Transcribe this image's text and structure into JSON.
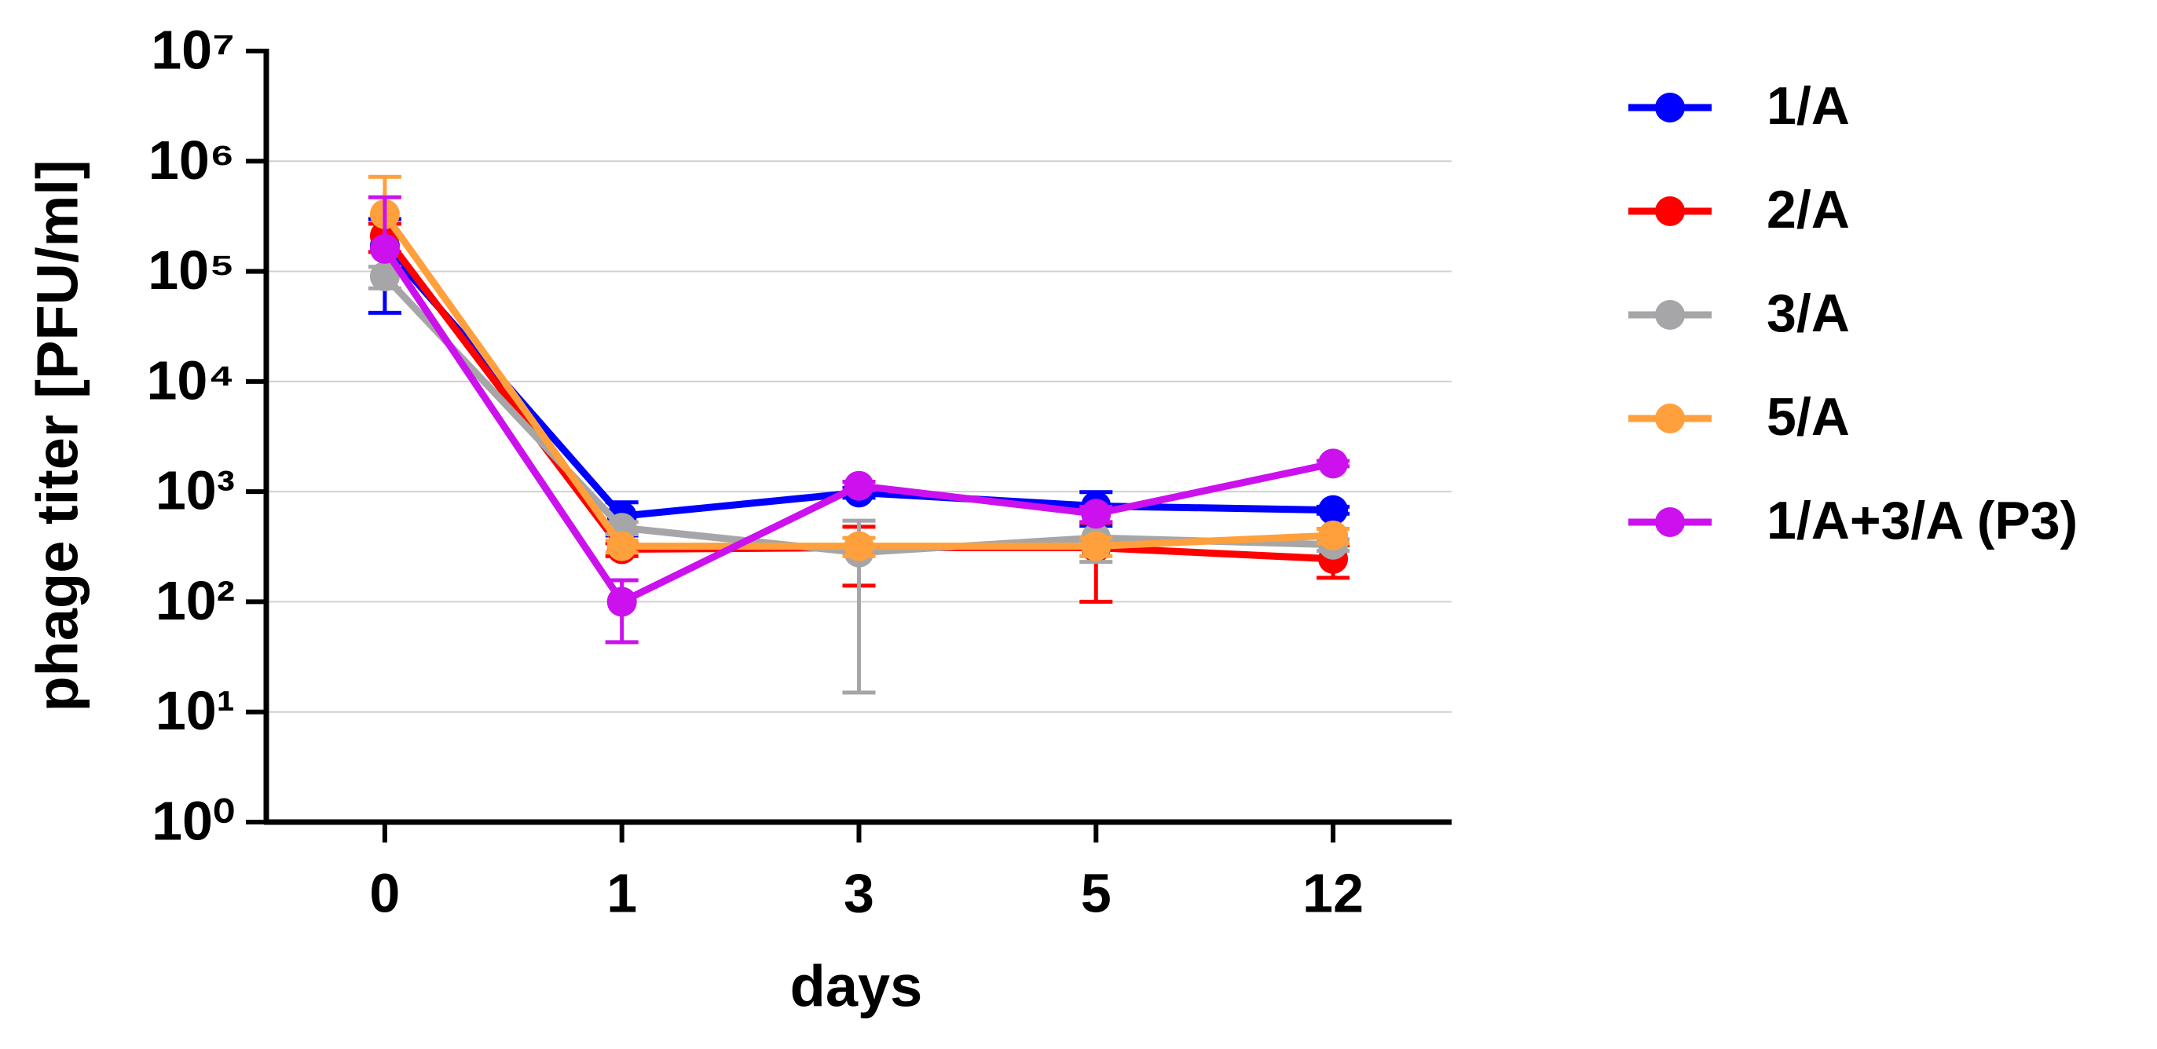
{
  "chart_data": {
    "type": "line",
    "x_label": "days",
    "y_label": "phage titer [PFU/ml]",
    "categories": [
      "0",
      "1",
      "3",
      "5",
      "12"
    ],
    "log_y": true,
    "ylim": [
      1,
      10000000
    ],
    "yticks": [
      {
        "value": 1,
        "label": "10⁰"
      },
      {
        "value": 10,
        "label": "10¹"
      },
      {
        "value": 100,
        "label": "10²"
      },
      {
        "value": 1000,
        "label": "10³"
      },
      {
        "value": 10000,
        "label": "10⁴"
      },
      {
        "value": 100000,
        "label": "10⁵"
      },
      {
        "value": 1000000,
        "label": "10⁶"
      },
      {
        "value": 10000000,
        "label": "10⁷"
      }
    ],
    "grid": true,
    "legend": "right",
    "series": [
      {
        "name": "1/A",
        "color": "#0000ff",
        "values": [
          170000,
          600,
          980,
          740,
          680
        ],
        "errors": [
          128000,
          200,
          100,
          250,
          50
        ]
      },
      {
        "name": "2/A",
        "color": "#ff0000",
        "values": [
          210000,
          300,
          310,
          310,
          245
        ],
        "errors": [
          60000,
          40,
          170,
          210,
          80
        ]
      },
      {
        "name": "3/A",
        "color": "#a6a6a8",
        "values": [
          90000,
          470,
          280,
          380,
          330
        ],
        "errors": [
          20000,
          60,
          265,
          150,
          40
        ]
      },
      {
        "name": "5/A",
        "color": "#ffa03c",
        "values": [
          330000,
          320,
          320,
          320,
          400
        ],
        "errors": [
          390000,
          40,
          60,
          60,
          60
        ]
      },
      {
        "name": "1/A+3/A (P3)",
        "color": "#cc11ee",
        "values": [
          160000,
          100,
          1130,
          630,
          1800
        ],
        "errors": [
          310000,
          57,
          100,
          100,
          100
        ]
      }
    ]
  }
}
